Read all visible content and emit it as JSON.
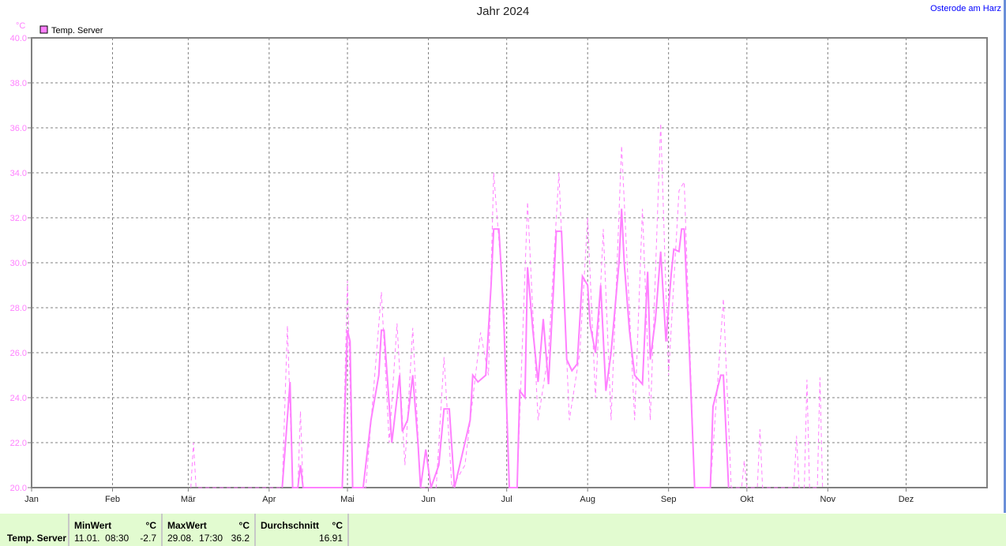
{
  "title": "Jahr 2024",
  "location": "Osterode am Harz",
  "colors": {
    "series": "#ff80ff",
    "axis": "#808080",
    "grid": "#808080",
    "location": "#0000ff",
    "footer_bg": "#e2fbd0"
  },
  "chart_data": {
    "type": "line",
    "title": "Jahr 2024",
    "ylabel": "°C",
    "ylim": [
      20,
      40
    ],
    "yticks": [
      "20.0",
      "22.0",
      "24.0",
      "26.0",
      "28.0",
      "30.0",
      "32.0",
      "34.0",
      "36.0",
      "38.0",
      "40.0"
    ],
    "xlim": [
      "2024-01-01",
      "2025-01-01"
    ],
    "xticks": [
      "Jan",
      "Feb",
      "Mär",
      "Apr",
      "Mai",
      "Jun",
      "Jul",
      "Aug",
      "Sep",
      "Okt",
      "Nov",
      "Dez"
    ],
    "grid": true,
    "legend": {
      "position": "top-left",
      "entries": [
        "Temp. Server"
      ]
    },
    "series": [
      {
        "name": "Temp. Server",
        "style": "solid",
        "points": [
          [
            "2024-04-06",
            20
          ],
          [
            "2024-04-09",
            24.7
          ],
          [
            "2024-04-10",
            20
          ],
          [
            "2024-04-12",
            20
          ],
          [
            "2024-04-13",
            21
          ],
          [
            "2024-04-14",
            20
          ],
          [
            "2024-04-29",
            20
          ],
          [
            "2024-05-01",
            27
          ],
          [
            "2024-05-02",
            26.5
          ],
          [
            "2024-05-03",
            20
          ],
          [
            "2024-05-07",
            20
          ],
          [
            "2024-05-10",
            23
          ],
          [
            "2024-05-13",
            25
          ],
          [
            "2024-05-14",
            27
          ],
          [
            "2024-05-15",
            27
          ],
          [
            "2024-05-18",
            22
          ],
          [
            "2024-05-21",
            25
          ],
          [
            "2024-05-22",
            22.5
          ],
          [
            "2024-05-24",
            23
          ],
          [
            "2024-05-26",
            25
          ],
          [
            "2024-05-28",
            22
          ],
          [
            "2024-05-29",
            20
          ],
          [
            "2024-05-31",
            21.7
          ],
          [
            "2024-06-02",
            20
          ],
          [
            "2024-06-05",
            21
          ],
          [
            "2024-06-07",
            23.5
          ],
          [
            "2024-06-09",
            23.5
          ],
          [
            "2024-06-11",
            20
          ],
          [
            "2024-06-14",
            21.5
          ],
          [
            "2024-06-17",
            23
          ],
          [
            "2024-06-18",
            25
          ],
          [
            "2024-06-20",
            24.7
          ],
          [
            "2024-06-23",
            25
          ],
          [
            "2024-06-25",
            29
          ],
          [
            "2024-06-26",
            31.5
          ],
          [
            "2024-06-28",
            31.5
          ],
          [
            "2024-06-29",
            29.5
          ],
          [
            "2024-06-30",
            27
          ],
          [
            "2024-07-02",
            20
          ],
          [
            "2024-07-05",
            20
          ],
          [
            "2024-07-06",
            24.3
          ],
          [
            "2024-07-08",
            24
          ],
          [
            "2024-07-09",
            29.8
          ],
          [
            "2024-07-11",
            27
          ],
          [
            "2024-07-13",
            24.7
          ],
          [
            "2024-07-15",
            27.5
          ],
          [
            "2024-07-17",
            24.6
          ],
          [
            "2024-07-19",
            29
          ],
          [
            "2024-07-20",
            31.4
          ],
          [
            "2024-07-22",
            31.4
          ],
          [
            "2024-07-24",
            25.7
          ],
          [
            "2024-07-26",
            25.2
          ],
          [
            "2024-07-28",
            25.5
          ],
          [
            "2024-07-30",
            29.4
          ],
          [
            "2024-08-01",
            29
          ],
          [
            "2024-08-02",
            27.2
          ],
          [
            "2024-08-04",
            26
          ],
          [
            "2024-08-06",
            29
          ],
          [
            "2024-08-08",
            24.3
          ],
          [
            "2024-08-10",
            26
          ],
          [
            "2024-08-13",
            30
          ],
          [
            "2024-08-14",
            32.4
          ],
          [
            "2024-08-15",
            30
          ],
          [
            "2024-08-17",
            27
          ],
          [
            "2024-08-19",
            25
          ],
          [
            "2024-08-22",
            24.6
          ],
          [
            "2024-08-24",
            29.6
          ],
          [
            "2024-08-25",
            25.7
          ],
          [
            "2024-08-27",
            27.5
          ],
          [
            "2024-08-29",
            30.5
          ],
          [
            "2024-08-31",
            26.5
          ],
          [
            "2024-09-02",
            29.5
          ],
          [
            "2024-09-03",
            30.6
          ],
          [
            "2024-09-05",
            30.5
          ],
          [
            "2024-09-06",
            31.5
          ],
          [
            "2024-09-07",
            31.5
          ],
          [
            "2024-09-09",
            26
          ],
          [
            "2024-09-11",
            20
          ],
          [
            "2024-09-17",
            20
          ],
          [
            "2024-09-18",
            23.6
          ],
          [
            "2024-09-21",
            25
          ],
          [
            "2024-09-22",
            25
          ],
          [
            "2024-09-24",
            20
          ]
        ]
      },
      {
        "name": "Temp. Server",
        "style": "dashed",
        "points": [
          [
            "2024-03-02",
            20
          ],
          [
            "2024-03-03",
            22
          ],
          [
            "2024-03-04",
            20
          ],
          [
            "2024-04-06",
            20
          ],
          [
            "2024-04-08",
            27.2
          ],
          [
            "2024-04-10",
            20
          ],
          [
            "2024-04-12",
            20
          ],
          [
            "2024-04-13",
            23.4
          ],
          [
            "2024-04-14",
            20
          ],
          [
            "2024-04-29",
            20
          ],
          [
            "2024-05-01",
            29.2
          ],
          [
            "2024-05-03",
            20
          ],
          [
            "2024-05-08",
            20
          ],
          [
            "2024-05-14",
            28.7
          ],
          [
            "2024-05-17",
            22
          ],
          [
            "2024-05-20",
            27.3
          ],
          [
            "2024-05-23",
            21
          ],
          [
            "2024-05-26",
            27.1
          ],
          [
            "2024-05-29",
            20
          ],
          [
            "2024-06-04",
            20
          ],
          [
            "2024-06-07",
            25.8
          ],
          [
            "2024-06-10",
            20
          ],
          [
            "2024-06-15",
            21
          ],
          [
            "2024-06-21",
            26.9
          ],
          [
            "2024-06-24",
            25
          ],
          [
            "2024-06-26",
            34
          ],
          [
            "2024-06-30",
            28
          ],
          [
            "2024-07-02",
            20
          ],
          [
            "2024-07-05",
            20
          ],
          [
            "2024-07-09",
            32.7
          ],
          [
            "2024-07-13",
            23
          ],
          [
            "2024-07-17",
            26
          ],
          [
            "2024-07-21",
            34
          ],
          [
            "2024-07-25",
            23
          ],
          [
            "2024-07-29",
            26
          ],
          [
            "2024-08-01",
            32
          ],
          [
            "2024-08-04",
            24
          ],
          [
            "2024-08-07",
            31.5
          ],
          [
            "2024-08-10",
            23
          ],
          [
            "2024-08-14",
            35.2
          ],
          [
            "2024-08-19",
            23
          ],
          [
            "2024-08-22",
            32.4
          ],
          [
            "2024-08-25",
            23
          ],
          [
            "2024-08-29",
            36.2
          ],
          [
            "2024-09-01",
            25
          ],
          [
            "2024-09-05",
            33.2
          ],
          [
            "2024-09-07",
            33.6
          ],
          [
            "2024-09-11",
            20
          ],
          [
            "2024-09-17",
            20
          ],
          [
            "2024-09-22",
            28.4
          ],
          [
            "2024-09-25",
            20
          ],
          [
            "2024-09-29",
            20
          ],
          [
            "2024-09-30",
            21.2
          ],
          [
            "2024-10-01",
            20
          ],
          [
            "2024-10-05",
            20
          ],
          [
            "2024-10-06",
            22.6
          ],
          [
            "2024-10-07",
            20
          ],
          [
            "2024-10-19",
            20
          ],
          [
            "2024-10-20",
            22.3
          ],
          [
            "2024-10-21",
            20
          ],
          [
            "2024-10-23",
            20
          ],
          [
            "2024-10-24",
            24.8
          ],
          [
            "2024-10-25",
            20
          ],
          [
            "2024-10-28",
            20
          ],
          [
            "2024-10-29",
            24.9
          ],
          [
            "2024-10-30",
            20
          ]
        ]
      }
    ]
  },
  "footer": {
    "row_label": "Temp. Server",
    "min": {
      "header": "MinWert",
      "unit": "°C",
      "time": "11.01.  08:30",
      "value": "-2.7"
    },
    "max": {
      "header": "MaxWert",
      "unit": "°C",
      "time": "29.08.  17:30",
      "value": "36.2"
    },
    "avg": {
      "header": "Durchschnitt",
      "unit": "°C",
      "value": "16.91"
    }
  }
}
